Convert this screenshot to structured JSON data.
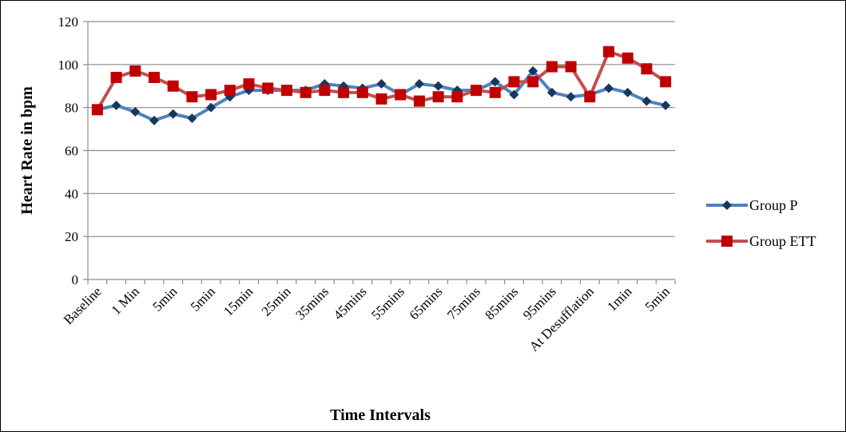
{
  "chart_data": {
    "type": "line",
    "xlabel": "Time Intervals",
    "ylabel": "Heart Rate in bpm",
    "ylim": [
      0,
      120
    ],
    "yticks": [
      0,
      20,
      40,
      60,
      80,
      100,
      120
    ],
    "grid": "horizontal",
    "legend_position": "right",
    "categories": [
      "Baseline",
      "",
      "1 Min",
      "",
      "5min",
      "",
      "5min",
      "",
      "15min",
      "",
      "25min",
      "",
      "35mins",
      "",
      "45mins",
      "",
      "55mins",
      "",
      "65mins",
      "",
      "75mins",
      "",
      "85mins",
      "",
      "95mins",
      "",
      "At Desufflation",
      "",
      "1min",
      "",
      "5min"
    ],
    "series": [
      {
        "name": "Group P",
        "color": "#4F81BD",
        "marker": "diamond",
        "marker_color": "#17375E",
        "values": [
          79,
          81,
          78,
          74,
          77,
          75,
          80,
          85,
          88,
          88,
          88,
          88,
          91,
          90,
          89,
          91,
          86,
          91,
          90,
          88,
          88,
          92,
          86,
          97,
          87,
          85,
          86,
          89,
          87,
          83,
          81
        ]
      },
      {
        "name": "Group ETT",
        "color": "#C0504D",
        "marker": "square",
        "marker_color": "#C00000",
        "values": [
          79,
          94,
          97,
          94,
          90,
          85,
          86,
          88,
          91,
          89,
          88,
          87,
          88,
          87,
          87,
          84,
          86,
          83,
          85,
          85,
          88,
          87,
          92,
          92,
          99,
          99,
          85,
          106,
          103,
          98,
          92
        ]
      }
    ]
  }
}
